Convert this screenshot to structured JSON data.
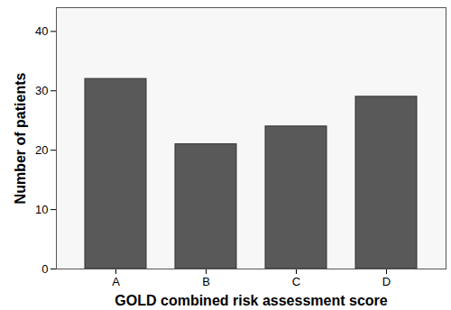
{
  "chart_data": {
    "type": "bar",
    "categories": [
      "A",
      "B",
      "C",
      "D"
    ],
    "values": [
      32,
      21,
      24,
      29
    ],
    "color": "#595959",
    "x_label": "GOLD combined risk assessment score",
    "y_label": "Number of patients",
    "ylim": [
      0,
      44
    ],
    "yticks": [
      0,
      10,
      20,
      30,
      40
    ],
    "grid": false
  }
}
